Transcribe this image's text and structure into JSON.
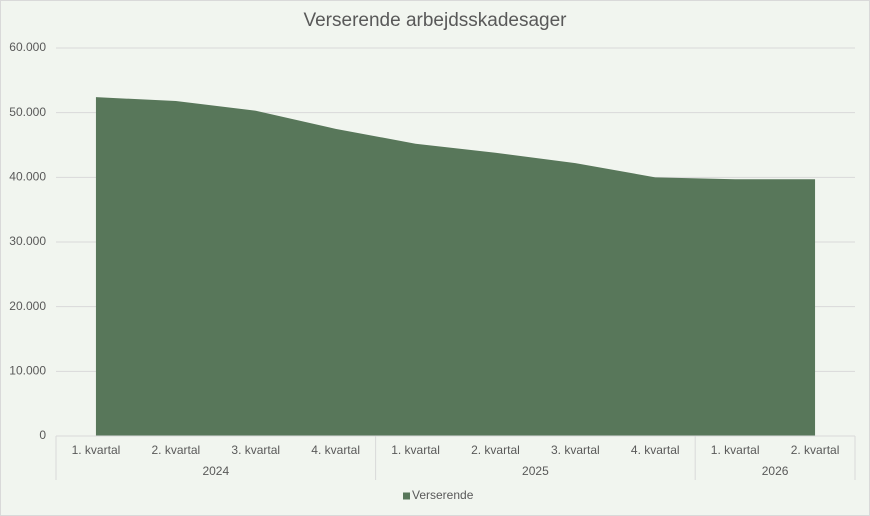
{
  "chart_data": {
    "type": "area",
    "title": "Verserende arbejdsskadesager",
    "categories": [
      "1. kvartal",
      "2. kvartal",
      "3. kvartal",
      "4. kvartal",
      "1. kvartal",
      "2. kvartal",
      "3. kvartal",
      "4. kvartal",
      "1. kvartal",
      "2. kvartal"
    ],
    "group_labels": [
      "2024",
      "2025",
      "2026"
    ],
    "series": [
      {
        "name": "Verserende",
        "color": "#58775a",
        "values": [
          52400,
          51800,
          50300,
          47500,
          45200,
          43800,
          42200,
          40000,
          39700,
          39700
        ]
      }
    ],
    "ylim": [
      0,
      60000
    ],
    "yticks": [
      {
        "value": 0,
        "label": "0"
      },
      {
        "value": 10000,
        "label": "10.000"
      },
      {
        "value": 20000,
        "label": "20.000"
      },
      {
        "value": 30000,
        "label": "30.000"
      },
      {
        "value": 40000,
        "label": "40.000"
      },
      {
        "value": 50000,
        "label": "50.000"
      },
      {
        "value": 60000,
        "label": "60.000"
      }
    ],
    "grid": true,
    "legend": "bottom"
  }
}
